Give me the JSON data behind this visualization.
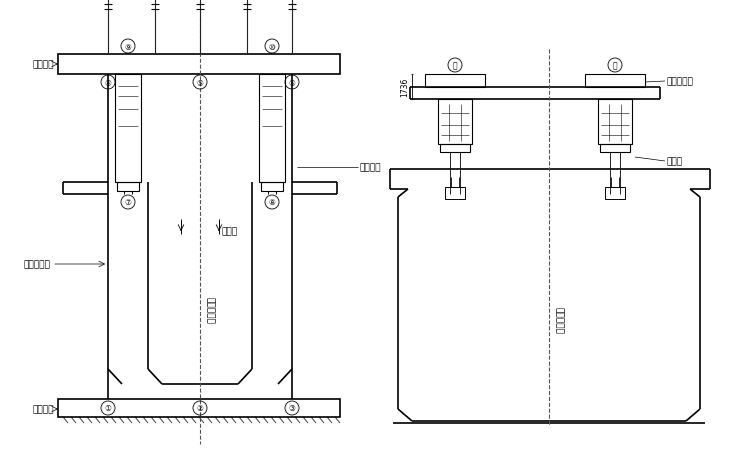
{
  "bg_color": "#ffffff",
  "line_color": "#000000",
  "fig_width": 7.29,
  "fig_height": 4.6,
  "labels": {
    "qian_shang_hengjia": "前上横梁",
    "qian_xia_hengjia": "前下横梁",
    "huajia_qiandaodai": "滑梁前吊带",
    "nei_hua_jia": "内滑架",
    "lingxing_zhijia": "菱形桁架",
    "xiang_liang_zhongxin": "箱梁中心线",
    "hou_mao_fenpei_jia": "后锚分配架",
    "hou_mao_tong": "后锚筒"
  }
}
